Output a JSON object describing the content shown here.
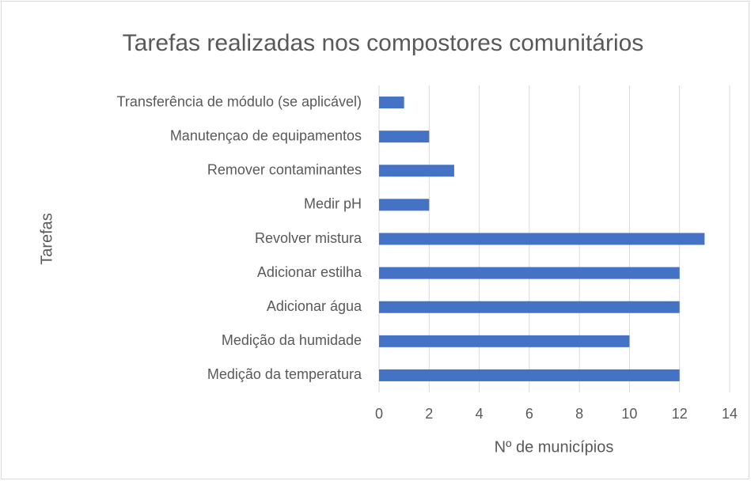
{
  "chart_data": {
    "type": "barh",
    "title": "Tarefas realizadas nos compostores comunitários",
    "x_label": "Nº de municípios",
    "y_label": "Tarefas",
    "categories": [
      "Transferência de módulo (se aplicável)",
      "Manutençao de equipamentos",
      "Remover contaminantes",
      "Medir pH",
      "Revolver mistura",
      "Adicionar estilha",
      "Adicionar água",
      "Medição da humidade",
      "Medição da temperatura"
    ],
    "values": [
      1,
      2,
      3,
      2,
      13,
      12,
      12,
      10,
      12
    ],
    "color": "#4472c4",
    "xlim": [
      0,
      14
    ],
    "xticks": [
      0,
      2,
      4,
      6,
      8,
      10,
      12,
      14
    ],
    "grid": true
  }
}
